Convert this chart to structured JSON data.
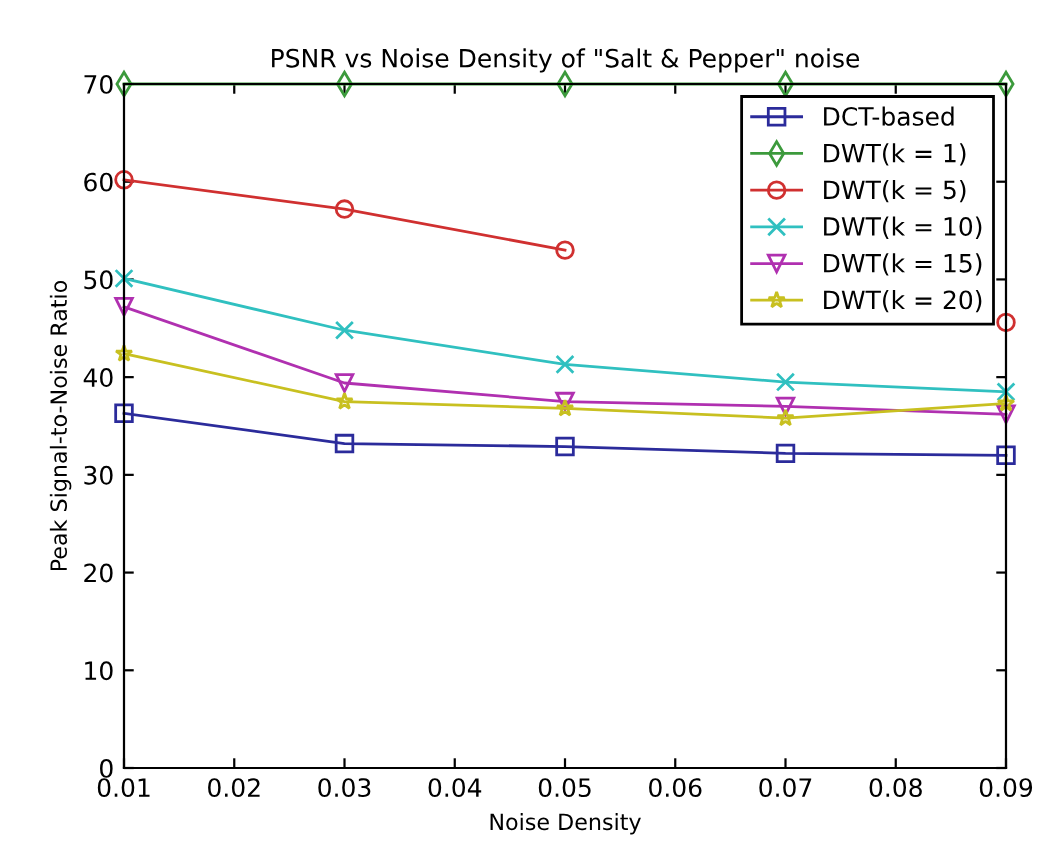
{
  "chart_data": {
    "type": "line",
    "title": "PSNR vs Noise Density of \"Salt & Pepper\" noise",
    "xlabel": "Noise Density",
    "ylabel": "Peak Signal-to-Noise Ratio",
    "x": [
      0.01,
      0.03,
      0.05,
      0.07,
      0.09
    ],
    "series": [
      {
        "name": "DCT-based",
        "color": "#2b2b9b",
        "marker": "square",
        "values": [
          36.3,
          33.2,
          32.9,
          32.2,
          32.0
        ]
      },
      {
        "name": "DWT(k = 1)",
        "color": "#3c9a3c",
        "marker": "diamond",
        "values": [
          70.0,
          70.0,
          70.0,
          70.0,
          70.0
        ]
      },
      {
        "name": "DWT(k = 5)",
        "color": "#d03030",
        "marker": "circle",
        "values": [
          60.2,
          57.2,
          53.0,
          null,
          45.6
        ]
      },
      {
        "name": "DWT(k = 10)",
        "color": "#30c0c0",
        "marker": "cross",
        "values": [
          50.1,
          44.8,
          41.3,
          39.5,
          38.5
        ]
      },
      {
        "name": "DWT(k = 15)",
        "color": "#b030b0",
        "marker": "triangle",
        "values": [
          47.2,
          39.4,
          37.5,
          37.0,
          36.2
        ]
      },
      {
        "name": "DWT(k = 20)",
        "color": "#c8c020",
        "marker": "star",
        "values": [
          42.4,
          37.5,
          36.8,
          35.8,
          37.3
        ]
      }
    ],
    "xlim": [
      0.01,
      0.09
    ],
    "ylim": [
      0,
      70
    ],
    "xticks": [
      {
        "value": 0.01,
        "label": "0.01"
      },
      {
        "value": 0.02,
        "label": "0.02"
      },
      {
        "value": 0.03,
        "label": "0.03"
      },
      {
        "value": 0.04,
        "label": "0.04"
      },
      {
        "value": 0.05,
        "label": "0.05"
      },
      {
        "value": 0.06,
        "label": "0.06"
      },
      {
        "value": 0.07,
        "label": "0.07"
      },
      {
        "value": 0.08,
        "label": "0.08"
      },
      {
        "value": 0.09,
        "label": "0.09"
      }
    ],
    "yticks": [
      0,
      10,
      20,
      30,
      40,
      50,
      60,
      70
    ],
    "grid": false,
    "legend": "top right",
    "line_style": "solid"
  }
}
